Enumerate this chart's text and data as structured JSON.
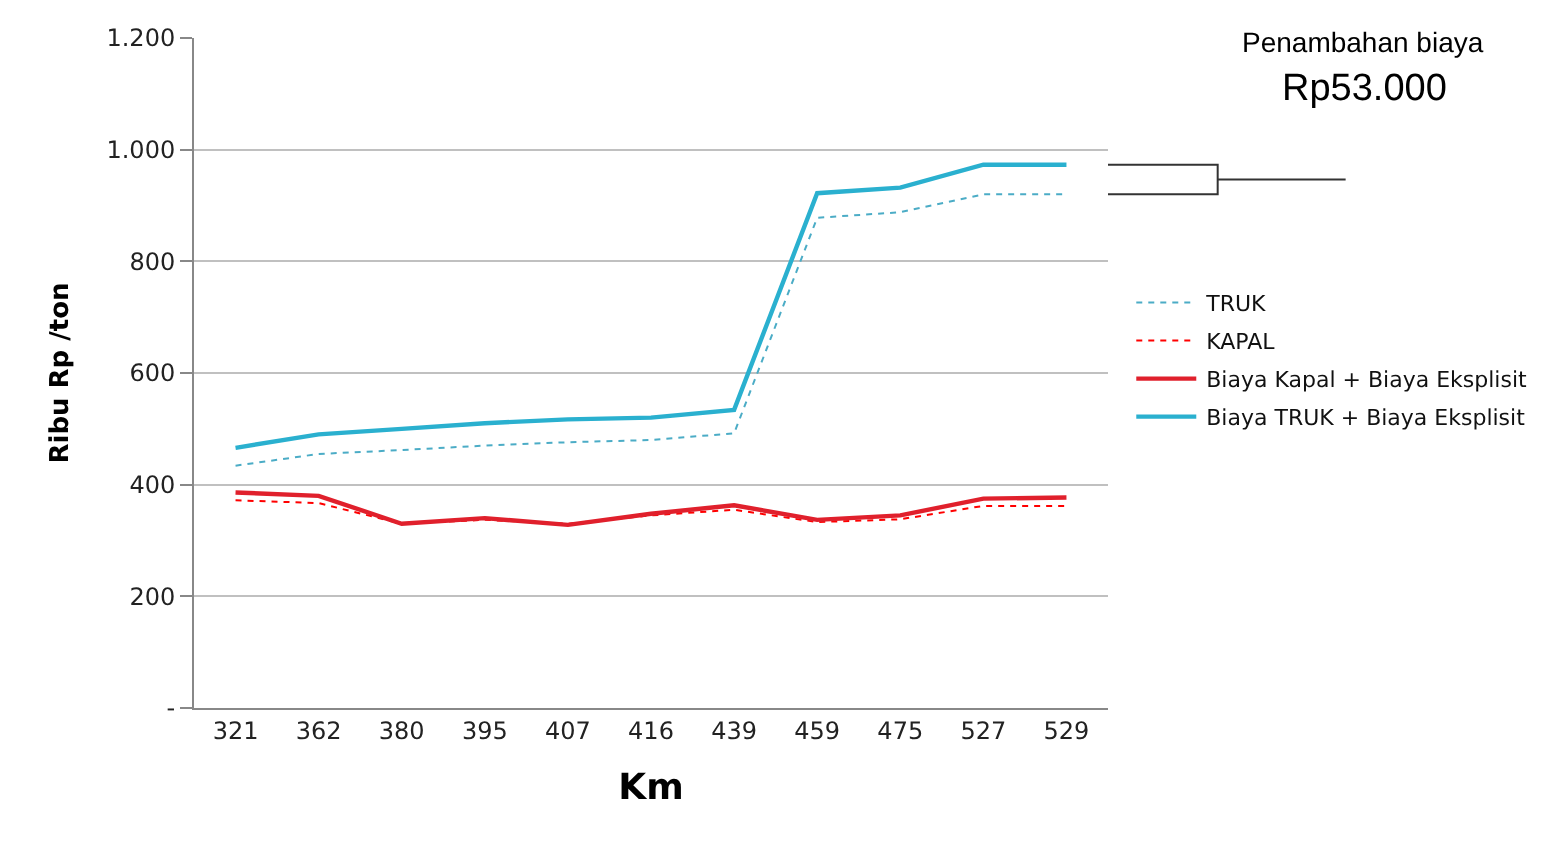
{
  "chart_data": {
    "type": "line",
    "xlabel": "Km",
    "ylabel": "Ribu Rp /ton",
    "categories": [
      "321",
      "362",
      "380",
      "395",
      "407",
      "416",
      "439",
      "459",
      "475",
      "527",
      "529"
    ],
    "series": [
      {
        "name": "TRUK",
        "color": "#4bacc6",
        "line_style": "dotted",
        "values": [
          434,
          455,
          462,
          470,
          476,
          480,
          492,
          878,
          888,
          920,
          920
        ]
      },
      {
        "name": "KAPAL",
        "color": "#ff0000",
        "line_style": "dotted",
        "values": [
          372,
          367,
          330,
          337,
          330,
          345,
          355,
          333,
          338,
          362,
          362
        ]
      },
      {
        "name": "Biaya Kapal + Biaya Eksplisit",
        "color": "#e0202c",
        "line_style": "solid",
        "values": [
          386,
          380,
          330,
          340,
          328,
          348,
          363,
          337,
          345,
          375,
          377
        ]
      },
      {
        "name": "Biaya TRUK + Biaya Eksplisit",
        "color": "#2ab0cf",
        "line_style": "solid",
        "values": [
          466,
          490,
          500,
          510,
          517,
          520,
          534,
          922,
          932,
          973,
          973
        ]
      }
    ],
    "ylim": [
      0,
      1200
    ],
    "yticks": [
      {
        "value": 0,
        "label": "-"
      },
      200,
      400,
      600,
      800,
      {
        "value": 1000,
        "label": "1.000"
      },
      {
        "value": 1200,
        "label": "1.200"
      }
    ],
    "grid": "y",
    "legend": "right",
    "marker": "none",
    "annotations": [
      "Penambahan biaya",
      "Rp53.000"
    ]
  }
}
